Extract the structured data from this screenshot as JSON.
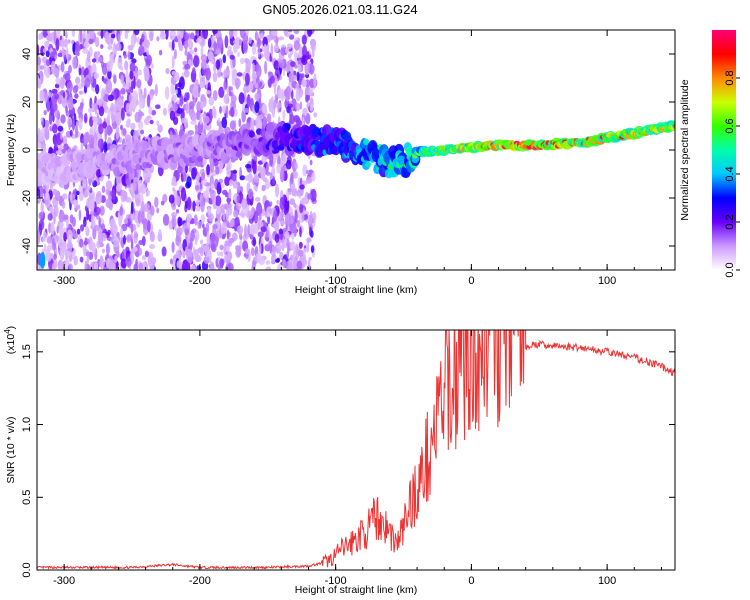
{
  "title": "GN05.2026.021.03.11.G24",
  "chart_data": [
    {
      "type": "heatmap",
      "name": "spectrogram",
      "xlabel": "Height of straight line (km)",
      "ylabel": "Frequency (Hz)",
      "xlim": [
        -320,
        150
      ],
      "ylim": [
        -50,
        50
      ],
      "xticks": [
        -300,
        -200,
        -100,
        0,
        100
      ],
      "yticks": [
        -40,
        -20,
        0,
        20,
        40
      ],
      "colorbar": {
        "label": "Normalized spectral amplitude",
        "range": [
          0,
          1
        ],
        "ticks": [
          0.0,
          0.2,
          0.4,
          0.6,
          0.8
        ]
      },
      "ridge": {
        "heights": [
          -320,
          -280,
          -240,
          -200,
          -160,
          -130,
          -110,
          -90,
          -75,
          -60,
          -50,
          -40,
          -20,
          0,
          20,
          50,
          80,
          100,
          120,
          150
        ],
        "frequency": [
          -8,
          -6,
          -2,
          0,
          4,
          5,
          4,
          2,
          -2,
          -5,
          -5,
          -1,
          0,
          1,
          2,
          2,
          3,
          5,
          7,
          10
        ],
        "amplitude": [
          0.1,
          0.12,
          0.15,
          0.15,
          0.2,
          0.3,
          0.35,
          0.4,
          0.45,
          0.5,
          0.5,
          0.6,
          0.7,
          0.85,
          0.95,
          0.95,
          0.9,
          0.85,
          0.85,
          0.8
        ]
      }
    },
    {
      "type": "line",
      "name": "snr",
      "xlabel": "Height of straight line (km)",
      "ylabel": "SNR (10 * v/v)",
      "scale_label": "(x10",
      "scale_exp": "4",
      "scale_close": ")",
      "xlim": [
        -320,
        150
      ],
      "ylim": [
        0,
        1.65
      ],
      "xticks": [
        -300,
        -200,
        -100,
        0,
        100
      ],
      "yticks": [
        0.0,
        0.5,
        1.0,
        1.5
      ],
      "color": "#ee3333",
      "series": [
        {
          "name": "SNR",
          "x": [
            -320,
            -250,
            -220,
            -200,
            -150,
            -120,
            -105,
            -95,
            -85,
            -75,
            -70,
            -65,
            -60,
            -55,
            -50,
            -45,
            -40,
            -35,
            -30,
            -25,
            -20,
            -15,
            -10,
            -5,
            0,
            5,
            10,
            20,
            30,
            40,
            50,
            60,
            80,
            100,
            120,
            140,
            150
          ],
          "y": [
            0.01,
            0.01,
            0.03,
            0.01,
            0.01,
            0.02,
            0.05,
            0.12,
            0.18,
            0.25,
            0.32,
            0.28,
            0.22,
            0.15,
            0.25,
            0.4,
            0.48,
            0.6,
            0.75,
            0.9,
            1.05,
            1.15,
            1.22,
            1.3,
            1.35,
            1.38,
            1.4,
            1.45,
            1.5,
            1.54,
            1.55,
            1.54,
            1.53,
            1.5,
            1.46,
            1.4,
            1.35
          ]
        }
      ]
    }
  ]
}
